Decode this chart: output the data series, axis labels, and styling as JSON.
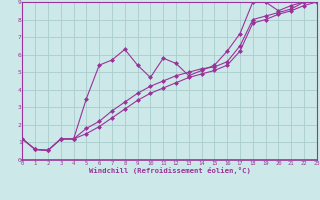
{
  "xlabel": "Windchill (Refroidissement éolien,°C)",
  "background_color": "#cce8e8",
  "line_color": "#993399",
  "grid_color": "#aacccc",
  "xlim": [
    0,
    23
  ],
  "ylim": [
    0,
    9
  ],
  "xticks": [
    0,
    1,
    2,
    3,
    4,
    5,
    6,
    7,
    8,
    9,
    10,
    11,
    12,
    13,
    14,
    15,
    16,
    17,
    18,
    19,
    20,
    21,
    22,
    23
  ],
  "yticks": [
    0,
    1,
    2,
    3,
    4,
    5,
    6,
    7,
    8,
    9
  ],
  "series": [
    [
      1.2,
      0.6,
      0.55,
      1.2,
      1.2,
      3.5,
      5.4,
      5.7,
      6.3,
      5.4,
      4.7,
      5.8,
      5.5,
      4.8,
      5.1,
      5.4,
      6.2,
      7.2,
      9.0,
      9.0,
      8.5,
      8.8,
      9.0,
      9.0
    ],
    [
      1.2,
      0.6,
      0.55,
      1.2,
      1.2,
      1.8,
      2.2,
      2.8,
      3.3,
      3.8,
      4.2,
      4.5,
      4.8,
      5.0,
      5.2,
      5.3,
      5.6,
      6.5,
      8.0,
      8.2,
      8.4,
      8.6,
      9.0,
      9.0
    ],
    [
      1.2,
      0.6,
      0.55,
      1.2,
      1.2,
      1.5,
      1.9,
      2.4,
      2.9,
      3.4,
      3.8,
      4.1,
      4.4,
      4.7,
      4.9,
      5.1,
      5.4,
      6.2,
      7.8,
      8.0,
      8.3,
      8.5,
      8.8,
      9.0
    ]
  ]
}
